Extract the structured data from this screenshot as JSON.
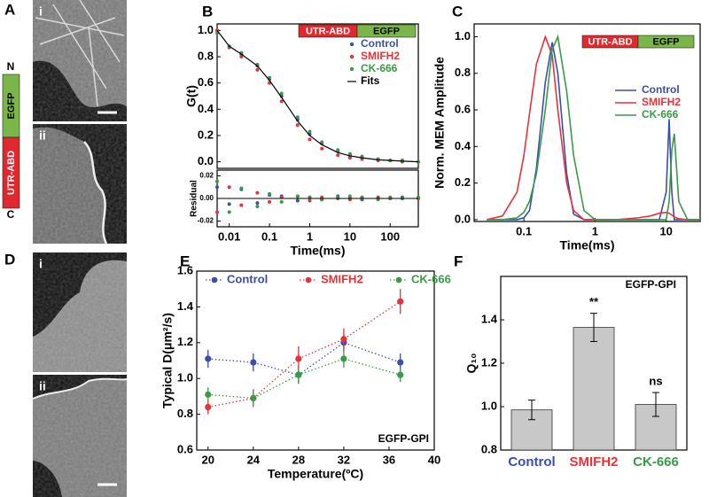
{
  "panel_labels": [
    "A",
    "B",
    "C",
    "D",
    "E",
    "F"
  ],
  "images": {
    "A": {
      "labels": [
        "i",
        "ii"
      ]
    },
    "D": {
      "labels": [
        "i",
        "ii"
      ]
    }
  },
  "construct": {
    "n_terminus": "N",
    "c_terminus": "C",
    "domains": [
      {
        "label": "EGFP",
        "color": "#7ab648"
      },
      {
        "label": "UTR-ABD",
        "color": "#e0282e"
      }
    ]
  },
  "chart_data": [
    {
      "type": "scatter",
      "ylabel": "G(t)",
      "xscale": "log",
      "xlim": [
        0.005,
        500
      ],
      "ylim": [
        -0.05,
        1.05
      ],
      "yticks": [
        {
          "value": 0,
          "label": "0.0"
        },
        0.2,
        0.4,
        0.6,
        0.8,
        {
          "value": 1,
          "label": "1.0"
        }
      ],
      "tag": [
        {
          "label": "UTR-ABD",
          "color": "#e0282e"
        },
        {
          "label": "EGFP",
          "color": "#7ab648"
        }
      ],
      "x": [
        0.005,
        0.01,
        0.02,
        0.05,
        0.1,
        0.2,
        0.5,
        1,
        2,
        5,
        10,
        20,
        50,
        100,
        200,
        500
      ],
      "series": [
        {
          "name": "Control",
          "color": "#3c4fa8",
          "values": [
            1.0,
            0.88,
            0.82,
            0.73,
            0.63,
            0.5,
            0.32,
            0.21,
            0.14,
            0.08,
            0.05,
            0.03,
            0.02,
            0.01,
            0.01,
            0.0
          ]
        },
        {
          "name": "SMIFH2",
          "color": "#e8323a",
          "values": [
            1.0,
            0.87,
            0.8,
            0.7,
            0.6,
            0.46,
            0.28,
            0.17,
            0.1,
            0.05,
            0.03,
            0.02,
            0.01,
            0.01,
            0.0,
            0.0
          ]
        },
        {
          "name": "CK-666",
          "color": "#3a9a46",
          "values": [
            0.98,
            0.88,
            0.83,
            0.74,
            0.64,
            0.52,
            0.34,
            0.23,
            0.15,
            0.09,
            0.06,
            0.04,
            0.02,
            0.01,
            0.01,
            0.0
          ]
        },
        {
          "name": "Fits",
          "color": "#000000",
          "style": "line",
          "values": [
            1.0,
            0.88,
            0.82,
            0.73,
            0.62,
            0.49,
            0.31,
            0.2,
            0.13,
            0.07,
            0.045,
            0.03,
            0.015,
            0.01,
            0.005,
            0.0
          ]
        }
      ]
    },
    {
      "type": "scatter",
      "ylabel": "Residual",
      "xlabel": "Time(ms)",
      "xscale": "log",
      "xlim": [
        0.005,
        500
      ],
      "ylim": [
        -0.025,
        0.025
      ],
      "xticks": [
        0.01,
        0.1,
        1,
        10,
        100
      ],
      "yticks": [
        -0.02,
        {
          "value": 0,
          "label": "0.00"
        },
        0.02
      ],
      "x": [
        0.005,
        0.01,
        0.02,
        0.05,
        0.1,
        0.2,
        0.5,
        1,
        2,
        5,
        10,
        20,
        50,
        100,
        200,
        500
      ],
      "series": [
        {
          "color": "#3c4fa8",
          "values": [
            0.01,
            -0.005,
            0.008,
            -0.004,
            0.003,
            0.002,
            -0.002,
            0.001,
            -0.001,
            0.002,
            0,
            -0.001,
            0.001,
            0,
            0.001,
            0
          ]
        },
        {
          "color": "#e8323a",
          "values": [
            -0.012,
            0.01,
            -0.006,
            0.005,
            -0.003,
            0.001,
            0.002,
            -0.002,
            0.001,
            0,
            -0.001,
            0.001,
            0,
            0.001,
            0,
            0
          ]
        },
        {
          "color": "#3a9a46",
          "values": [
            0.015,
            -0.012,
            0.009,
            -0.007,
            0.004,
            -0.003,
            0.002,
            0.001,
            -0.001,
            0.001,
            0.002,
            0,
            -0.001,
            0,
            0,
            0.001
          ]
        }
      ]
    },
    {
      "type": "line",
      "ylabel": "Norm. MEM Amplitude",
      "xlabel": "Time(ms)",
      "xscale": "log",
      "xlim": [
        0.02,
        30
      ],
      "ylim": [
        -0.01,
        1.07
      ],
      "xticks": [
        0.1,
        1,
        10
      ],
      "yticks": [
        {
          "value": 0,
          "label": "0.0"
        },
        0.2,
        0.4,
        0.6,
        0.8,
        {
          "value": 1,
          "label": "1.0"
        }
      ],
      "tag": [
        {
          "label": "UTR-ABD",
          "color": "#e0282e"
        },
        {
          "label": "EGFP",
          "color": "#7ab648"
        }
      ],
      "x": [
        0.03,
        0.05,
        0.08,
        0.1,
        0.12,
        0.15,
        0.2,
        0.25,
        0.3,
        0.4,
        0.5,
        0.7,
        1,
        2,
        4,
        6,
        8,
        10,
        11,
        12,
        13,
        15,
        20,
        30
      ],
      "series": [
        {
          "name": "Control",
          "color": "#3c4fa8",
          "values": [
            0,
            0,
            0,
            0.01,
            0.05,
            0.28,
            0.75,
            0.97,
            0.8,
            0.25,
            0.03,
            0,
            0,
            0,
            0,
            0,
            0,
            0.15,
            0.55,
            0.15,
            0,
            0,
            0,
            0
          ]
        },
        {
          "name": "SMIFH2",
          "color": "#e8323a",
          "values": [
            0,
            0.02,
            0.15,
            0.35,
            0.58,
            0.85,
            1.0,
            0.9,
            0.6,
            0.2,
            0.05,
            0,
            0,
            0,
            0.01,
            0.02,
            0.035,
            0.04,
            0.035,
            0.025,
            0.015,
            0.005,
            0,
            0
          ]
        },
        {
          "name": "CK-666",
          "color": "#3a9a46",
          "values": [
            0,
            0,
            0.01,
            0.04,
            0.1,
            0.25,
            0.6,
            0.93,
            1.0,
            0.7,
            0.35,
            0.05,
            0,
            0,
            0,
            0,
            0,
            0,
            0.1,
            0.38,
            0.47,
            0.1,
            0,
            0
          ]
        }
      ]
    },
    {
      "type": "errorline",
      "ylabel": "Typical D(μm²/s)",
      "xlabel": "Temperature(ºC)",
      "xlim": [
        19,
        40
      ],
      "ylim": [
        0.6,
        1.6
      ],
      "xticks": [
        20,
        24,
        28,
        32,
        36,
        40
      ],
      "yticks": [
        0.6,
        0.8,
        {
          "value": 1,
          "label": "1.0"
        },
        1.2,
        1.4,
        1.6
      ],
      "annotation": "EGFP-GPI",
      "x": [
        20,
        24,
        28,
        32,
        37
      ],
      "series": [
        {
          "name": "Control",
          "color": "#3c4fa8",
          "values": [
            1.11,
            1.09,
            1.02,
            1.2,
            1.09
          ],
          "errors": [
            0.05,
            0.05,
            0.05,
            0.05,
            0.05
          ]
        },
        {
          "name": "SMIFH2",
          "color": "#e8323a",
          "values": [
            0.84,
            0.89,
            1.11,
            1.22,
            1.43
          ],
          "errors": [
            0.04,
            0.05,
            0.07,
            0.06,
            0.07
          ]
        },
        {
          "name": "CK-666",
          "color": "#3a9a46",
          "values": [
            0.91,
            0.89,
            1.02,
            1.11,
            1.02
          ],
          "errors": [
            0.04,
            0.04,
            0.04,
            0.05,
            0.04
          ]
        }
      ]
    },
    {
      "type": "bar",
      "ylabel": "Q₁₀",
      "ylim": [
        0.8,
        1.6
      ],
      "yticks": [
        0.8,
        {
          "value": 1,
          "label": "1.0"
        },
        1.2,
        1.4
      ],
      "annotation": "EGFP-GPI",
      "color": "#c8c8c8",
      "categories": [
        "Control",
        "SMIFH2",
        "CK-666"
      ],
      "category_colors": [
        "#3c4fa8",
        "#e8323a",
        "#3a9a46"
      ],
      "values": [
        0.985,
        1.365,
        1.01
      ],
      "errors": [
        0.045,
        0.065,
        0.055
      ],
      "significance": [
        {
          "index": 1,
          "label": "**"
        },
        {
          "index": 2,
          "label": "ns"
        }
      ]
    }
  ]
}
